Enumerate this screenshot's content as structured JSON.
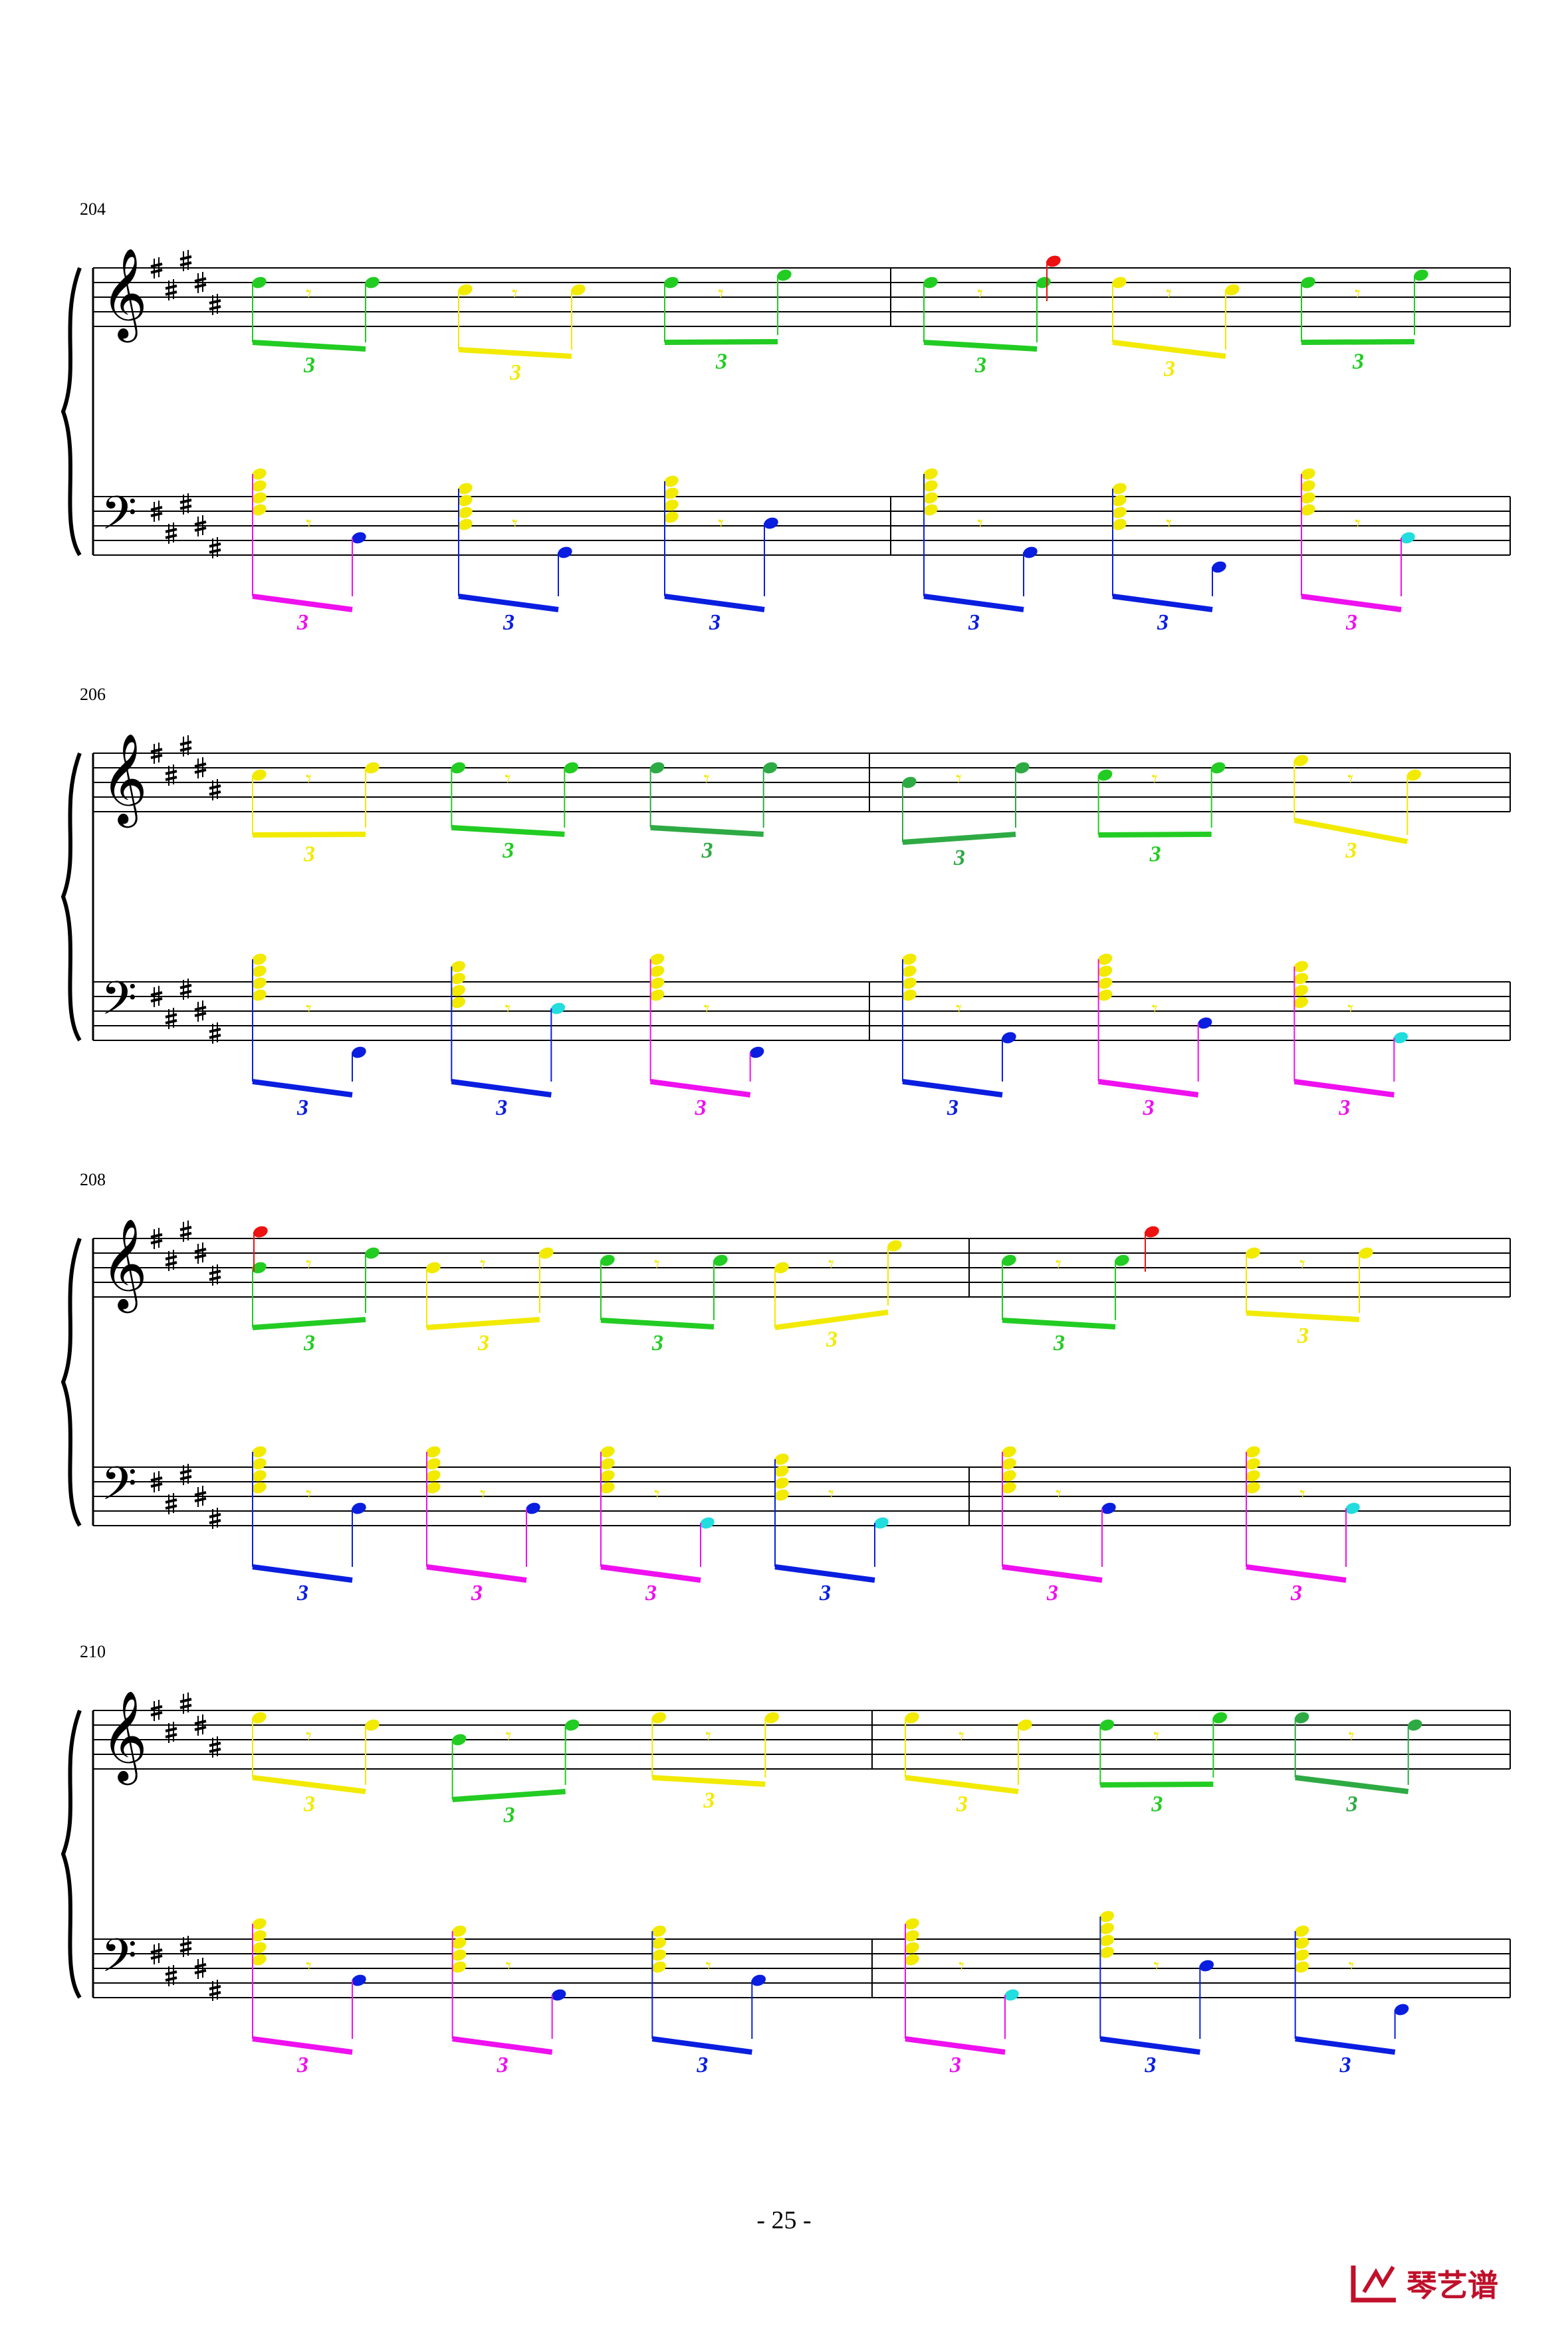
{
  "page_number": "- 25 -",
  "logo_text": "琴艺谱",
  "colors": {
    "green": "#22cc22",
    "dark_green": "#2eaa44",
    "yellow": "#f2ea00",
    "blue": "#0a1ee0",
    "magenta": "#ee10ee",
    "cyan": "#22dddd",
    "red": "#ee1111",
    "staff": "#000000"
  },
  "key_signature": "5 sharps (B major)",
  "systems": [
    {
      "measure_number": "204"
    },
    {
      "measure_number": "206"
    },
    {
      "measure_number": "208"
    },
    {
      "measure_number": "210"
    }
  ],
  "tuplet_label": "3"
}
